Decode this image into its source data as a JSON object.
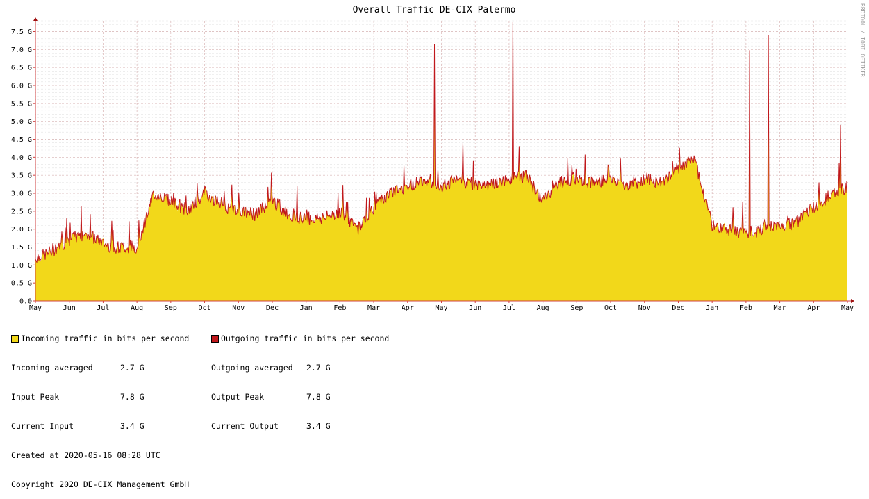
{
  "chart_data": {
    "type": "area",
    "title": "Overall Traffic DE-CIX Palermo",
    "watermark": "RRDTOOL / TOBI OETIKER",
    "xlabel": "",
    "ylabel": "",
    "y_ticks": [
      "0.0",
      "0.5 G",
      "1.0 G",
      "1.5 G",
      "2.0 G",
      "2.5 G",
      "3.0 G",
      "3.5 G",
      "4.0 G",
      "4.5 G",
      "5.0 G",
      "5.5 G",
      "6.0 G",
      "6.5 G",
      "7.0 G",
      "7.5 G"
    ],
    "ylim": [
      0,
      7.8
    ],
    "x_ticks": [
      "May",
      "Jun",
      "Jul",
      "Aug",
      "Sep",
      "Oct",
      "Nov",
      "Dec",
      "Jan",
      "Feb",
      "Mar",
      "Apr",
      "May",
      "Jun",
      "Jul",
      "Aug",
      "Sep",
      "Oct",
      "Nov",
      "Dec",
      "Jan",
      "Feb",
      "Mar",
      "Apr",
      "May"
    ],
    "grid": true,
    "units": "G bits per second",
    "x": [
      "2018-05",
      "2018-05",
      "2018-06",
      "2018-06",
      "2018-07",
      "2018-07",
      "2018-08",
      "2018-08",
      "2018-09",
      "2018-09",
      "2018-10",
      "2018-10",
      "2018-11",
      "2018-11",
      "2018-12",
      "2018-12",
      "2019-01",
      "2019-01",
      "2019-02",
      "2019-02",
      "2019-03",
      "2019-03",
      "2019-04",
      "2019-04",
      "2019-05",
      "2019-05",
      "2019-06",
      "2019-06",
      "2019-07",
      "2019-07",
      "2019-08",
      "2019-08",
      "2019-09",
      "2019-09",
      "2019-10",
      "2019-10",
      "2019-11",
      "2019-11",
      "2019-12",
      "2019-12",
      "2020-01",
      "2020-01",
      "2020-02",
      "2020-02",
      "2020-03",
      "2020-03",
      "2020-04",
      "2020-04",
      "2020-05"
    ],
    "series": [
      {
        "name": "Incoming traffic in bits per second",
        "color": "#f2d81a",
        "values": [
          1.2,
          1.4,
          1.7,
          1.9,
          1.6,
          1.5,
          1.5,
          3.0,
          2.8,
          2.5,
          3.0,
          2.7,
          2.5,
          2.4,
          2.8,
          2.4,
          2.3,
          2.3,
          2.5,
          2.0,
          2.6,
          3.0,
          3.2,
          3.4,
          3.2,
          3.4,
          3.2,
          3.2,
          3.4,
          3.5,
          2.8,
          3.3,
          3.4,
          3.3,
          3.4,
          3.2,
          3.4,
          3.3,
          3.7,
          3.9,
          2.1,
          2.0,
          1.9,
          2.0,
          2.1,
          2.2,
          2.6,
          2.9,
          3.2
        ]
      },
      {
        "name": "Outgoing traffic in bits per second",
        "color": "#c0181c",
        "values": [
          1.2,
          1.4,
          1.7,
          1.9,
          1.6,
          1.5,
          1.5,
          3.0,
          2.8,
          2.5,
          3.0,
          2.7,
          2.5,
          2.4,
          2.8,
          2.4,
          2.3,
          2.3,
          2.5,
          2.0,
          2.6,
          3.0,
          3.2,
          3.4,
          3.2,
          3.4,
          3.2,
          3.2,
          3.4,
          3.5,
          2.8,
          3.3,
          3.4,
          3.3,
          3.4,
          3.2,
          3.4,
          3.3,
          3.7,
          3.9,
          2.1,
          2.0,
          1.9,
          2.0,
          2.1,
          2.2,
          2.6,
          2.9,
          3.2
        ]
      }
    ],
    "spikes": [
      {
        "x": "2019-04-25",
        "value": 7.15
      },
      {
        "x": "2019-07-05",
        "value": 7.78
      },
      {
        "x": "2020-02-03",
        "value": 6.98
      },
      {
        "x": "2020-02-20",
        "value": 7.4
      },
      {
        "x": "2020-04-25",
        "value": 4.9
      }
    ]
  },
  "legend": {
    "incoming_label": "Incoming traffic in bits per second",
    "outgoing_label": "Outgoing traffic in bits per second",
    "incoming_color": "#f2d81a",
    "outgoing_color": "#c0181c",
    "stats": {
      "in_avg_label": "Incoming averaged",
      "in_avg_value": "2.7 G",
      "in_peak_label": "Input Peak",
      "in_peak_value": "7.8 G",
      "in_cur_label": "Current Input",
      "in_cur_value": "3.4 G",
      "out_avg_label": "Outgoing averaged",
      "out_avg_value": "2.7 G",
      "out_peak_label": "Output Peak",
      "out_peak_value": "7.8 G",
      "out_cur_label": "Current Output",
      "out_cur_value": "3.4 G"
    },
    "created": "Created at 2020-05-16 08:28 UTC",
    "copyright": "Copyright 2020 DE-CIX Management GmbH"
  }
}
